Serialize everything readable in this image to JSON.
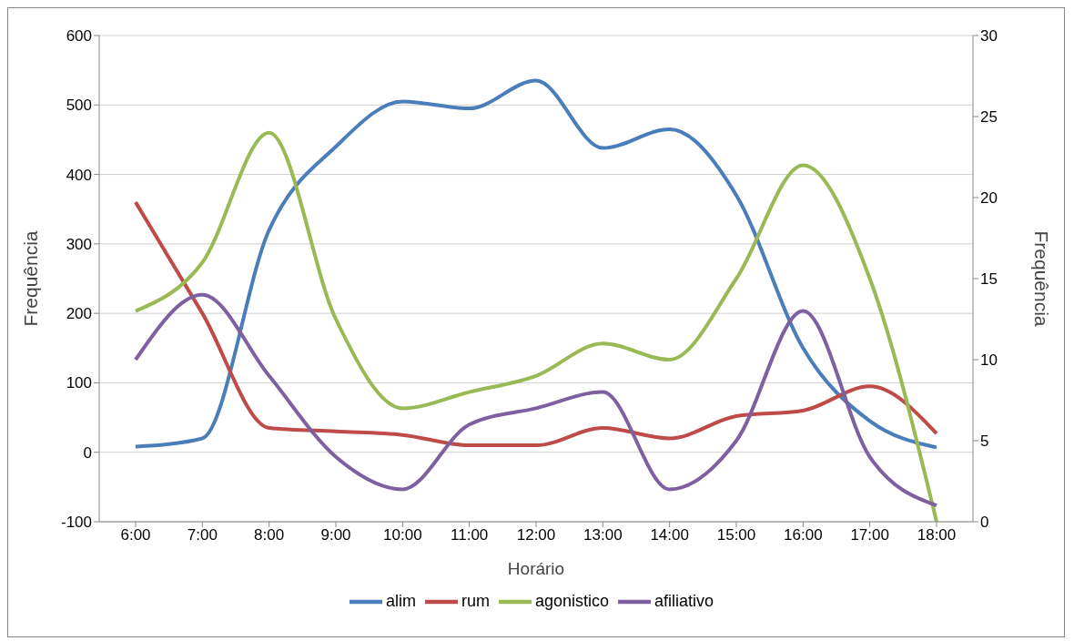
{
  "chart_data": {
    "type": "line",
    "xlabel": "Horário",
    "ylabel": "Frequência",
    "y2label": "Frequência",
    "categories": [
      "6:00",
      "7:00",
      "8:00",
      "9:00",
      "10:00",
      "11:00",
      "12:00",
      "13:00",
      "14:00",
      "15:00",
      "16:00",
      "17:00",
      "18:00"
    ],
    "series": [
      {
        "name": "alim",
        "color": "#4a7ebb",
        "values": [
          8,
          20,
          320,
          440,
          505,
          495,
          535,
          438,
          465,
          370,
          150,
          45,
          7
        ]
      },
      {
        "name": "rum",
        "color": "#be4b48",
        "values": [
          360,
          200,
          35,
          30,
          25,
          10,
          10,
          35,
          20,
          52,
          60,
          95,
          27
        ]
      },
      {
        "name": "agonistico",
        "color": "#98b954",
        "axis": "y2",
        "values": [
          13,
          16,
          24,
          12.5,
          7,
          8,
          9,
          11,
          10,
          15,
          22,
          15,
          0
        ]
      },
      {
        "name": "afiliativo",
        "color": "#7d60a0",
        "axis": "y2",
        "values": [
          10,
          14,
          9,
          4,
          2,
          6,
          7,
          8,
          2,
          5,
          13,
          4,
          1
        ]
      }
    ],
    "ylim": [
      -100,
      600
    ],
    "yticks": [
      -100,
      0,
      100,
      200,
      300,
      400,
      500,
      600
    ],
    "y2lim": [
      0,
      30
    ],
    "y2ticks": [
      0,
      5,
      10,
      15,
      20,
      25,
      30
    ],
    "grid": "y",
    "legend": "bottom",
    "marker": "none",
    "line_style": "solid"
  }
}
